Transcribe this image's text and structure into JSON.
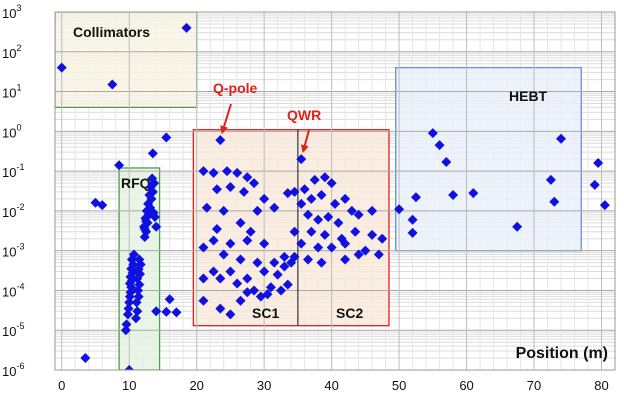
{
  "chart_data": {
    "type": "scatter",
    "title": "",
    "xlabel": "Position (m)",
    "ylabel": "",
    "xlim": [
      -1,
      82
    ],
    "ylim": [
      1e-06,
      1000
    ],
    "y_scale": "log",
    "grid": true,
    "x_ticks": [
      "0",
      "10",
      "20",
      "30",
      "40",
      "50",
      "60",
      "70",
      "80"
    ],
    "y_ticks": [
      {
        "base": "10",
        "exp": "-6"
      },
      {
        "base": "10",
        "exp": "-5"
      },
      {
        "base": "10",
        "exp": "-4"
      },
      {
        "base": "10",
        "exp": "-3"
      },
      {
        "base": "10",
        "exp": "-2"
      },
      {
        "base": "10",
        "exp": "-1"
      },
      {
        "base": "10",
        "exp": "0"
      },
      {
        "base": "10",
        "exp": "1"
      },
      {
        "base": "10",
        "exp": "2"
      },
      {
        "base": "10",
        "exp": "3"
      }
    ],
    "marker_color": "#1010e0",
    "regions": [
      {
        "label": "Collimators",
        "x": [
          -1,
          20
        ],
        "y": [
          4,
          1000
        ],
        "edge": "#4aa04a",
        "fill": "#f7f3e4"
      },
      {
        "label": "RFQ",
        "x": [
          8.5,
          14.5
        ],
        "y": [
          1e-06,
          0.12
        ],
        "edge": "#4aa04a",
        "fill": "#e6f2e1"
      },
      {
        "label": "",
        "x": [
          19.5,
          48.5
        ],
        "y": [
          1.3e-05,
          1.1
        ],
        "edge": "#e02020",
        "fill": "#f9e9d9"
      },
      {
        "label": "HEBT",
        "x": [
          49.5,
          77
        ],
        "y": [
          0.001,
          40
        ],
        "edge": "#6a8fd0",
        "fill": "#eaf0fa"
      }
    ],
    "region_divider_x": 35,
    "sub_labels": [
      "SC1",
      "SC2"
    ],
    "annotations": [
      {
        "text": "Q-pole",
        "target": [
          23.5,
          0.6
        ]
      },
      {
        "text": "QWR",
        "target": [
          35.5,
          0.2
        ]
      }
    ],
    "points": [
      [
        0,
        40
      ],
      [
        3.5,
        2e-06
      ],
      [
        7.5,
        15
      ],
      [
        18.5,
        400
      ],
      [
        15.5,
        0.7
      ],
      [
        13.5,
        0.28
      ],
      [
        8.5,
        0.14
      ],
      [
        5,
        0.016
      ],
      [
        6,
        0.014
      ],
      [
        10,
        1e-06
      ],
      [
        9.5,
        1e-05
      ],
      [
        9.6,
        1.4e-05
      ],
      [
        9.8,
        2.5e-05
      ],
      [
        9.9,
        3.5e-05
      ],
      [
        10,
        5e-05
      ],
      [
        10.1,
        7e-05
      ],
      [
        10.2,
        9e-05
      ],
      [
        10.3,
        0.00012
      ],
      [
        10.1,
        0.00015
      ],
      [
        10.4,
        0.00018
      ],
      [
        10.2,
        0.00022
      ],
      [
        10.5,
        0.00028
      ],
      [
        10.3,
        0.00035
      ],
      [
        10.6,
        0.00045
      ],
      [
        10.4,
        0.0006
      ],
      [
        10.7,
        0.0008
      ],
      [
        11,
        2e-05
      ],
      [
        11.2,
        3e-05
      ],
      [
        11.1,
        5e-05
      ],
      [
        11.4,
        7e-05
      ],
      [
        11.3,
        0.0001
      ],
      [
        11.5,
        0.00014
      ],
      [
        11.2,
        0.0002
      ],
      [
        11.6,
        0.00026
      ],
      [
        11.4,
        0.00034
      ],
      [
        11.7,
        0.00045
      ],
      [
        11.5,
        0.0006
      ],
      [
        12.3,
        0.0022
      ],
      [
        12.5,
        0.003
      ],
      [
        12.2,
        0.004
      ],
      [
        12.7,
        0.005
      ],
      [
        12.4,
        0.0065
      ],
      [
        12.9,
        0.008
      ],
      [
        12.6,
        0.01
      ],
      [
        13.1,
        0.012
      ],
      [
        12.8,
        0.015
      ],
      [
        13.3,
        0.02
      ],
      [
        13,
        0.025
      ],
      [
        13.5,
        0.03
      ],
      [
        13.2,
        0.04
      ],
      [
        13.7,
        0.05
      ],
      [
        13.4,
        0.065
      ],
      [
        12.3,
        0.0035
      ],
      [
        12.5,
        0.0055
      ],
      [
        13.8,
        0.007
      ],
      [
        13.6,
        0.009
      ],
      [
        14,
        0.004
      ],
      [
        14,
        3e-05
      ],
      [
        15.5,
        2.9e-05
      ],
      [
        16,
        6e-05
      ],
      [
        17,
        2.8e-05
      ],
      [
        21,
        0.1
      ],
      [
        22.5,
        0.09
      ],
      [
        24.5,
        0.1
      ],
      [
        26,
        0.09
      ],
      [
        27.5,
        0.07
      ],
      [
        28.5,
        0.05
      ],
      [
        23,
        0.035
      ],
      [
        25,
        0.04
      ],
      [
        27,
        0.03
      ],
      [
        30,
        0.02
      ],
      [
        21.5,
        0.012
      ],
      [
        24,
        0.01
      ],
      [
        29,
        0.01
      ],
      [
        31.5,
        0.012
      ],
      [
        33.5,
        0.028
      ],
      [
        26.5,
        0.005
      ],
      [
        23,
        0.0035
      ],
      [
        28,
        0.003
      ],
      [
        22.5,
        0.0018
      ],
      [
        25,
        0.0015
      ],
      [
        27.5,
        0.0018
      ],
      [
        30,
        0.0015
      ],
      [
        21,
        0.0012
      ],
      [
        24,
        0.0008
      ],
      [
        26.5,
        0.0006
      ],
      [
        29,
        0.0005
      ],
      [
        31.5,
        0.0005
      ],
      [
        33,
        0.0007
      ],
      [
        22.5,
        0.0003
      ],
      [
        25,
        0.0003
      ],
      [
        27.5,
        0.0002
      ],
      [
        30,
        0.0003
      ],
      [
        32,
        0.00025
      ],
      [
        21,
        0.0002
      ],
      [
        23.5,
        0.0002
      ],
      [
        26,
        0.00015
      ],
      [
        28.5,
        0.0001
      ],
      [
        31,
        0.00012
      ],
      [
        33.5,
        0.00014
      ],
      [
        21,
        5.5e-05
      ],
      [
        23.5,
        3.5e-05
      ],
      [
        26.5,
        5.5e-05
      ],
      [
        25,
        2.5e-05
      ],
      [
        27.5,
        9e-05
      ],
      [
        29.5,
        7e-05
      ],
      [
        30.5,
        8e-05
      ],
      [
        32.5,
        0.0001
      ],
      [
        23.5,
        0.6
      ],
      [
        35.5,
        0.2
      ],
      [
        34.5,
        0.03
      ],
      [
        36,
        0.035
      ],
      [
        37.5,
        0.06
      ],
      [
        39,
        0.07
      ],
      [
        40,
        0.05
      ],
      [
        35.5,
        0.015
      ],
      [
        37,
        0.02
      ],
      [
        38.5,
        0.025
      ],
      [
        40.5,
        0.015
      ],
      [
        42,
        0.02
      ],
      [
        43,
        0.01
      ],
      [
        36.5,
        0.008
      ],
      [
        38,
        0.006
      ],
      [
        39.5,
        0.007
      ],
      [
        41,
        0.005
      ],
      [
        44,
        0.008
      ],
      [
        46,
        0.01
      ],
      [
        34.5,
        0.003
      ],
      [
        37,
        0.003
      ],
      [
        39,
        0.0025
      ],
      [
        41.5,
        0.002
      ],
      [
        43.5,
        0.003
      ],
      [
        46,
        0.0025
      ],
      [
        47.5,
        0.002
      ],
      [
        35.5,
        0.0015
      ],
      [
        38,
        0.0012
      ],
      [
        40,
        0.0012
      ],
      [
        42,
        0.0015
      ],
      [
        45,
        0.001
      ],
      [
        44,
        0.0008
      ],
      [
        47,
        0.0008
      ],
      [
        42,
        0.0006
      ],
      [
        36.5,
        0.0006
      ],
      [
        38.5,
        0.0005
      ],
      [
        34,
        0.0005
      ],
      [
        33,
        0.0004
      ],
      [
        34.5,
        0.0007
      ],
      [
        50,
        0.011
      ],
      [
        52,
        0.006
      ],
      [
        52.5,
        0.022
      ],
      [
        52,
        0.0028
      ],
      [
        55,
        0.9
      ],
      [
        56,
        0.45
      ],
      [
        57,
        0.17
      ],
      [
        58,
        0.025
      ],
      [
        61,
        0.028
      ],
      [
        67.5,
        0.004
      ],
      [
        72.5,
        0.06
      ],
      [
        73,
        0.017
      ],
      [
        74,
        0.65
      ],
      [
        79.5,
        0.16
      ],
      [
        79,
        0.045
      ],
      [
        80.5,
        0.014
      ]
    ]
  }
}
